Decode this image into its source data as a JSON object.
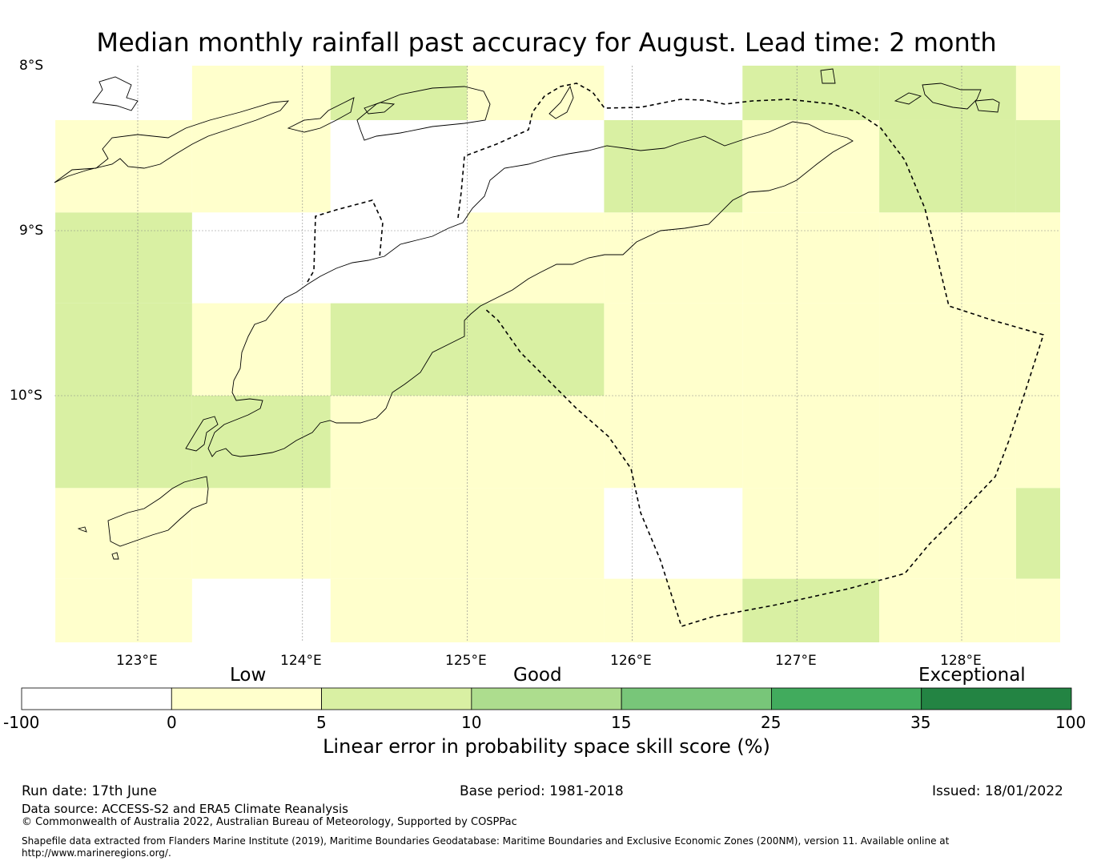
{
  "title": "Median monthly rainfall past accuracy for August. Lead time: 2 month",
  "map": {
    "lat_labels": [
      "8°S",
      "9°S",
      "10°S"
    ],
    "lon_labels": [
      "123°E",
      "124°E",
      "125°E",
      "126°E",
      "127°E",
      "128°E"
    ],
    "colors": {
      "negative": "#ffffff",
      "low": "#ffffcc",
      "good": "#d9f0a3",
      "good2": "#addd8e",
      "good3": "#78c679",
      "exceptional": "#41ab5d",
      "exceptional2": "#238443"
    },
    "grid_cells": [
      {
        "lon": [
          122.5,
          123.33
        ],
        "lat": [
          -8.0,
          -8.33
        ],
        "category": "negative"
      },
      {
        "lon": [
          123.33,
          124.17
        ],
        "lat": [
          -8.0,
          -8.33
        ],
        "category": "low"
      },
      {
        "lon": [
          124.17,
          125.0
        ],
        "lat": [
          -8.0,
          -8.33
        ],
        "category": "good"
      },
      {
        "lon": [
          125.0,
          125.83
        ],
        "lat": [
          -8.0,
          -8.33
        ],
        "category": "low"
      },
      {
        "lon": [
          125.83,
          126.67
        ],
        "lat": [
          -8.0,
          -8.33
        ],
        "category": "negative"
      },
      {
        "lon": [
          126.67,
          127.5
        ],
        "lat": [
          -8.0,
          -8.33
        ],
        "category": "good"
      },
      {
        "lon": [
          127.5,
          128.33
        ],
        "lat": [
          -8.0,
          -8.33
        ],
        "category": "good"
      },
      {
        "lon": [
          128.33,
          128.6
        ],
        "lat": [
          -8.0,
          -8.33
        ],
        "category": "low"
      },
      {
        "lon": [
          122.5,
          123.33
        ],
        "lat": [
          -8.33,
          -8.89
        ],
        "category": "low"
      },
      {
        "lon": [
          123.33,
          124.17
        ],
        "lat": [
          -8.33,
          -8.89
        ],
        "category": "low"
      },
      {
        "lon": [
          124.17,
          125.0
        ],
        "lat": [
          -8.33,
          -8.89
        ],
        "category": "negative"
      },
      {
        "lon": [
          125.0,
          125.83
        ],
        "lat": [
          -8.33,
          -8.89
        ],
        "category": "negative"
      },
      {
        "lon": [
          125.83,
          126.67
        ],
        "lat": [
          -8.33,
          -8.89
        ],
        "category": "good"
      },
      {
        "lon": [
          126.67,
          127.5
        ],
        "lat": [
          -8.33,
          -8.89
        ],
        "category": "low"
      },
      {
        "lon": [
          127.5,
          128.33
        ],
        "lat": [
          -8.33,
          -8.89
        ],
        "category": "good"
      },
      {
        "lon": [
          128.33,
          128.6
        ],
        "lat": [
          -8.33,
          -8.89
        ],
        "category": "good"
      },
      {
        "lon": [
          122.5,
          123.33
        ],
        "lat": [
          -8.89,
          -9.44
        ],
        "category": "good"
      },
      {
        "lon": [
          123.33,
          124.17
        ],
        "lat": [
          -8.89,
          -9.44
        ],
        "category": "negative"
      },
      {
        "lon": [
          124.17,
          125.0
        ],
        "lat": [
          -8.89,
          -9.44
        ],
        "category": "negative"
      },
      {
        "lon": [
          125.0,
          125.83
        ],
        "lat": [
          -8.89,
          -9.44
        ],
        "category": "low"
      },
      {
        "lon": [
          125.83,
          126.67
        ],
        "lat": [
          -8.89,
          -9.44
        ],
        "category": "low"
      },
      {
        "lon": [
          126.67,
          127.5
        ],
        "lat": [
          -8.89,
          -9.44
        ],
        "category": "low"
      },
      {
        "lon": [
          127.5,
          128.33
        ],
        "lat": [
          -8.89,
          -9.44
        ],
        "category": "low"
      },
      {
        "lon": [
          128.33,
          128.6
        ],
        "lat": [
          -8.89,
          -9.44
        ],
        "category": "low"
      },
      {
        "lon": [
          122.5,
          123.33
        ],
        "lat": [
          -9.44,
          -10.0
        ],
        "category": "good"
      },
      {
        "lon": [
          123.33,
          124.17
        ],
        "lat": [
          -9.44,
          -10.0
        ],
        "category": "low"
      },
      {
        "lon": [
          124.17,
          125.0
        ],
        "lat": [
          -9.44,
          -10.0
        ],
        "category": "good"
      },
      {
        "lon": [
          125.0,
          125.83
        ],
        "lat": [
          -9.44,
          -10.0
        ],
        "category": "good"
      },
      {
        "lon": [
          125.83,
          126.67
        ],
        "lat": [
          -9.44,
          -10.0
        ],
        "category": "low"
      },
      {
        "lon": [
          126.67,
          127.5
        ],
        "lat": [
          -9.44,
          -10.0
        ],
        "category": "low"
      },
      {
        "lon": [
          127.5,
          128.33
        ],
        "lat": [
          -9.44,
          -10.0
        ],
        "category": "low"
      },
      {
        "lon": [
          128.33,
          128.6
        ],
        "lat": [
          -9.44,
          -10.0
        ],
        "category": "low"
      },
      {
        "lon": [
          122.5,
          123.33
        ],
        "lat": [
          -10.0,
          -10.56
        ],
        "category": "good"
      },
      {
        "lon": [
          123.33,
          124.17
        ],
        "lat": [
          -10.0,
          -10.56
        ],
        "category": "good"
      },
      {
        "lon": [
          124.17,
          125.0
        ],
        "lat": [
          -10.0,
          -10.56
        ],
        "category": "low"
      },
      {
        "lon": [
          125.0,
          125.83
        ],
        "lat": [
          -10.0,
          -10.56
        ],
        "category": "low"
      },
      {
        "lon": [
          125.83,
          126.67
        ],
        "lat": [
          -10.0,
          -10.56
        ],
        "category": "low"
      },
      {
        "lon": [
          126.67,
          127.5
        ],
        "lat": [
          -10.0,
          -10.56
        ],
        "category": "low"
      },
      {
        "lon": [
          127.5,
          128.33
        ],
        "lat": [
          -10.0,
          -10.56
        ],
        "category": "low"
      },
      {
        "lon": [
          128.33,
          128.6
        ],
        "lat": [
          -10.0,
          -10.56
        ],
        "category": "low"
      },
      {
        "lon": [
          122.5,
          123.33
        ],
        "lat": [
          -10.56,
          -11.11
        ],
        "category": "low"
      },
      {
        "lon": [
          123.33,
          124.17
        ],
        "lat": [
          -10.56,
          -11.11
        ],
        "category": "low"
      },
      {
        "lon": [
          124.17,
          125.0
        ],
        "lat": [
          -10.56,
          -11.11
        ],
        "category": "low"
      },
      {
        "lon": [
          125.0,
          125.83
        ],
        "lat": [
          -10.56,
          -11.11
        ],
        "category": "low"
      },
      {
        "lon": [
          125.83,
          126.67
        ],
        "lat": [
          -10.56,
          -11.11
        ],
        "category": "negative"
      },
      {
        "lon": [
          126.67,
          127.5
        ],
        "lat": [
          -10.56,
          -11.11
        ],
        "category": "low"
      },
      {
        "lon": [
          127.5,
          128.33
        ],
        "lat": [
          -10.56,
          -11.11
        ],
        "category": "low"
      },
      {
        "lon": [
          128.33,
          128.6
        ],
        "lat": [
          -10.56,
          -11.11
        ],
        "category": "good"
      },
      {
        "lon": [
          122.5,
          123.33
        ],
        "lat": [
          -11.11,
          -11.5
        ],
        "category": "low"
      },
      {
        "lon": [
          123.33,
          124.17
        ],
        "lat": [
          -11.11,
          -11.5
        ],
        "category": "negative"
      },
      {
        "lon": [
          124.17,
          125.0
        ],
        "lat": [
          -11.11,
          -11.5
        ],
        "category": "low"
      },
      {
        "lon": [
          125.0,
          125.83
        ],
        "lat": [
          -11.11,
          -11.5
        ],
        "category": "low"
      },
      {
        "lon": [
          125.83,
          126.67
        ],
        "lat": [
          -11.11,
          -11.5
        ],
        "category": "low"
      },
      {
        "lon": [
          126.67,
          127.5
        ],
        "lat": [
          -11.11,
          -11.5
        ],
        "category": "good"
      },
      {
        "lon": [
          127.5,
          128.33
        ],
        "lat": [
          -11.11,
          -11.5
        ],
        "category": "low"
      },
      {
        "lon": [
          128.33,
          128.6
        ],
        "lat": [
          -11.11,
          -11.5
        ],
        "category": "low"
      }
    ]
  },
  "colorbar": {
    "categories": [
      "Low",
      "Good",
      "Exceptional"
    ],
    "ticks": [
      "-100",
      "0",
      "5",
      "10",
      "15",
      "25",
      "35",
      "100"
    ],
    "title": "Linear error in probability space skill score (%)"
  },
  "footer": {
    "run_date": "Run date: 17th June",
    "base_period": "Base period: 1981-2018",
    "issued": "Issued: 18/01/2022",
    "data_source": "Data source: ACCESS-S2 and ERA5 Climate Reanalysis",
    "copyright": "© Commonwealth of Australia 2022, Australian Bureau of Meteorology, Supported by COSPPac",
    "shapefile_line1": "Shapefile data extracted from Flanders Marine Institute (2019), Maritime Boundaries Geodatabase: Maritime Boundaries and Exclusive Economic Zones (200NM), version 11. Available online at",
    "shapefile_line2": "http://www.marineregions.org/."
  }
}
